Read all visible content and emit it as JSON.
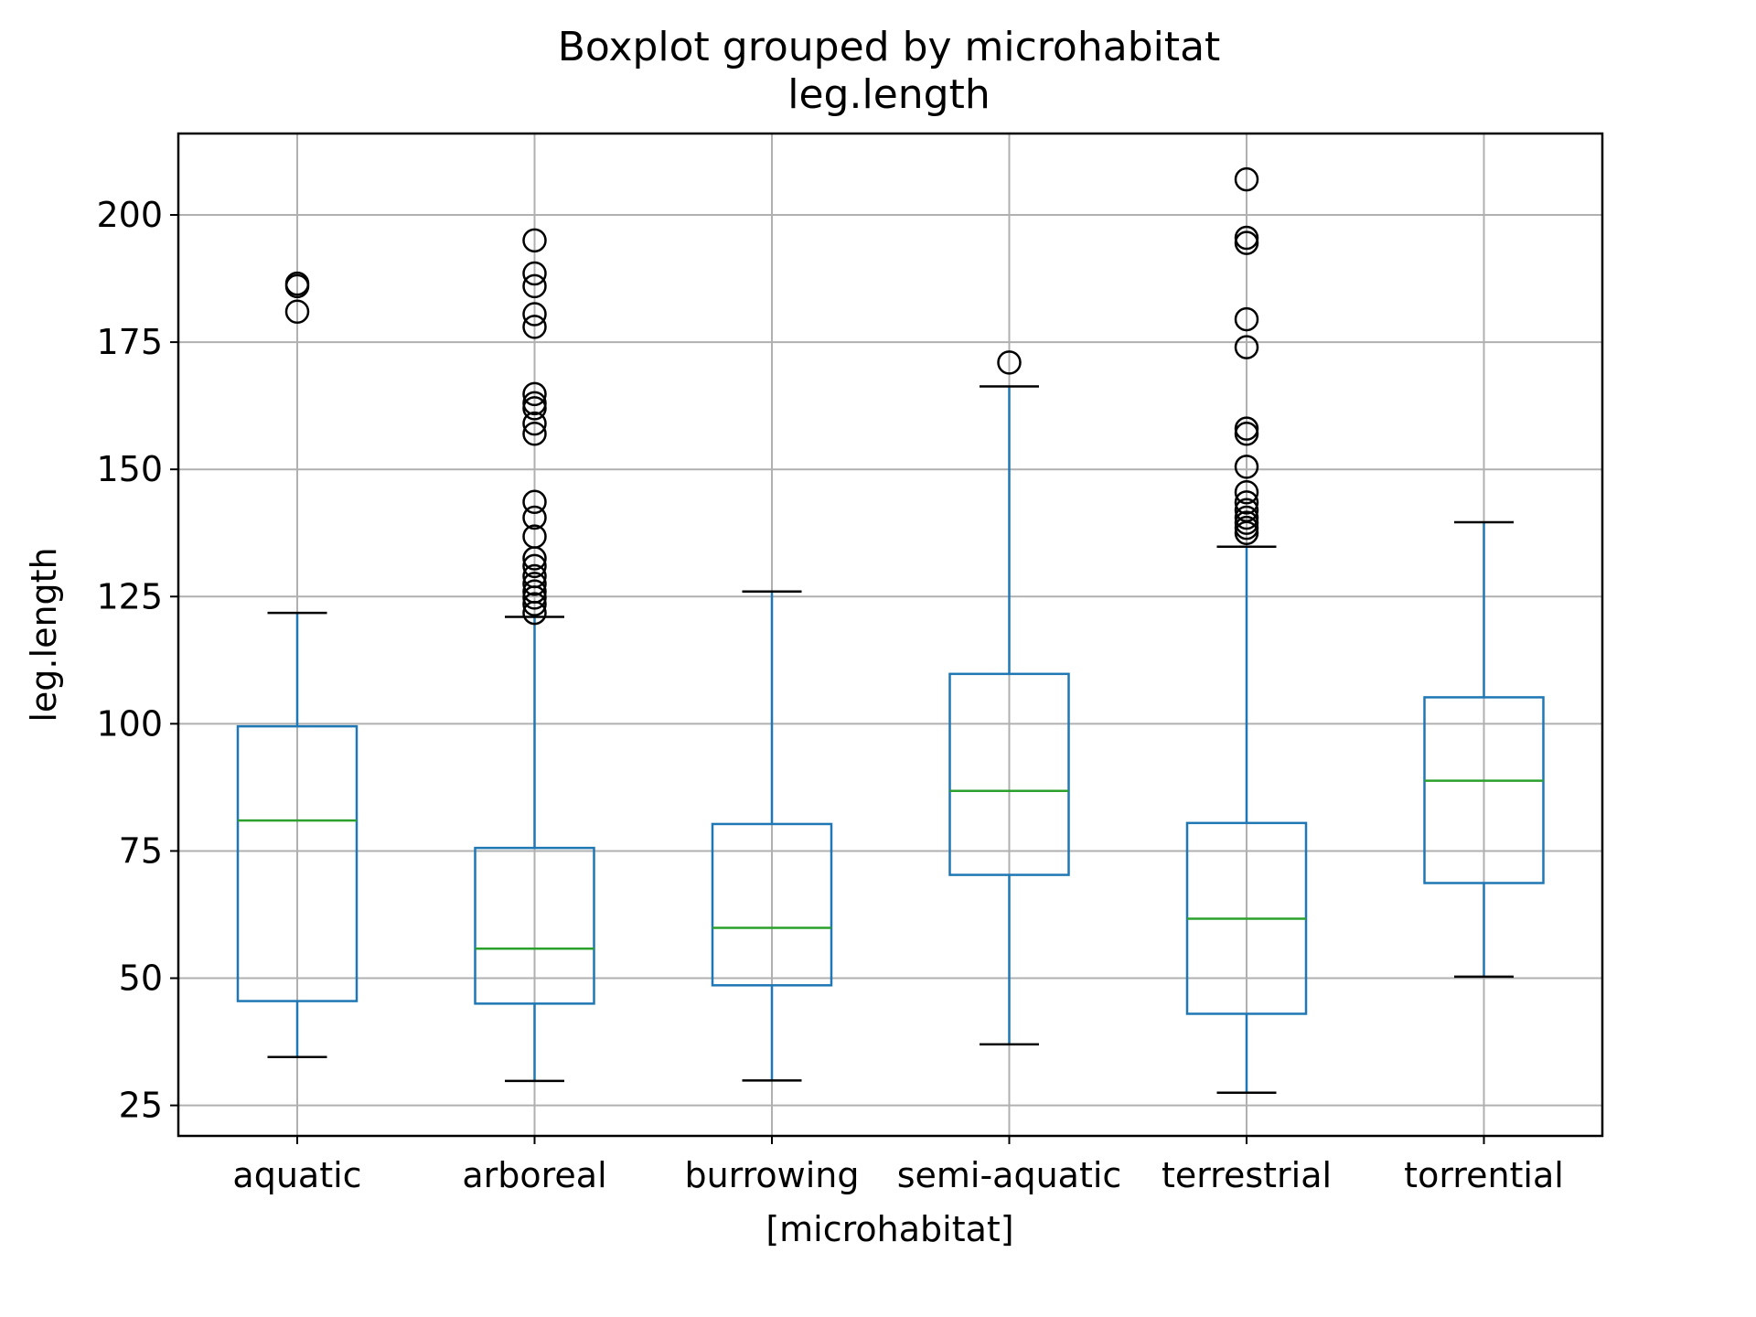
{
  "chart_data": {
    "type": "boxplot",
    "title": "Boxplot grouped by microhabitat",
    "subtitle": "leg.length",
    "xlabel": "[microhabitat]",
    "ylabel": "leg.length",
    "ylim": [
      19,
      216
    ],
    "yticks": [
      "25",
      "50",
      "75",
      "100",
      "125",
      "150",
      "175",
      "200"
    ],
    "grid": true,
    "colors": {
      "box": "#1f77b4",
      "median": "#2ca02c",
      "cap": "#000000",
      "flier": "#000000",
      "grid": "#b0b0b0"
    },
    "categories": [
      "aquatic",
      "arboreal",
      "burrowing",
      "semi-aquatic",
      "terrestrial",
      "torrential"
    ],
    "boxes": [
      {
        "whislo": 34.5,
        "q1": 45.5,
        "med": 81,
        "q3": 99.5,
        "whishi": 121.8,
        "fliers": [
          181,
          186,
          186.5
        ]
      },
      {
        "whislo": 29.8,
        "q1": 45,
        "med": 55.8,
        "q3": 75.6,
        "whishi": 121,
        "fliers": [
          121.8,
          123.5,
          124.8,
          126,
          127.5,
          129,
          131,
          132.5,
          136.8,
          140.5,
          143.6,
          157,
          159,
          162,
          163,
          164.8,
          178,
          180.5,
          186,
          188.5,
          195
        ]
      },
      {
        "whislo": 29.9,
        "q1": 48.6,
        "med": 59.9,
        "q3": 80.3,
        "whishi": 126,
        "fliers": []
      },
      {
        "whislo": 37,
        "q1": 70.3,
        "med": 86.8,
        "q3": 109.8,
        "whishi": 166.3,
        "fliers": [
          171
        ]
      },
      {
        "whislo": 27.5,
        "q1": 43,
        "med": 61.7,
        "q3": 80.5,
        "whishi": 134.8,
        "fliers": [
          137.5,
          138.5,
          139.5,
          140.5,
          142,
          143.5,
          145.5,
          150.5,
          157,
          158,
          174,
          179.5,
          194.5,
          195.5,
          207
        ]
      },
      {
        "whislo": 50.3,
        "q1": 68.7,
        "med": 88.8,
        "q3": 105.2,
        "whishi": 139.6,
        "fliers": []
      }
    ]
  }
}
